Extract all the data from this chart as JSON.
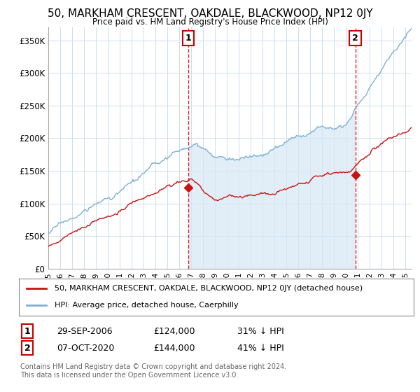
{
  "title": "50, MARKHAM CRESCENT, OAKDALE, BLACKWOOD, NP12 0JY",
  "subtitle": "Price paid vs. HM Land Registry's House Price Index (HPI)",
  "x_start_year": 1995,
  "x_end_year": 2025,
  "ylim": [
    0,
    370000
  ],
  "yticks": [
    0,
    50000,
    100000,
    150000,
    200000,
    250000,
    300000,
    350000
  ],
  "ytick_labels": [
    "£0",
    "£50K",
    "£100K",
    "£150K",
    "£200K",
    "£250K",
    "£300K",
    "£350K"
  ],
  "hpi_color": "#7eb0d5",
  "hpi_fill_color": "#d6e8f5",
  "sale_color": "#cc1111",
  "vline_color": "#cc0000",
  "marker1_date": 2006.75,
  "marker1_price": 124000,
  "marker1_label": "1",
  "marker2_date": 2020.77,
  "marker2_price": 144000,
  "marker2_label": "2",
  "legend_entry1": "50, MARKHAM CRESCENT, OAKDALE, BLACKWOOD, NP12 0JY (detached house)",
  "legend_entry2": "HPI: Average price, detached house, Caerphilly",
  "table_row1": [
    "1",
    "29-SEP-2006",
    "£124,000",
    "31% ↓ HPI"
  ],
  "table_row2": [
    "2",
    "07-OCT-2020",
    "£144,000",
    "41% ↓ HPI"
  ],
  "footnote1": "Contains HM Land Registry data © Crown copyright and database right 2024.",
  "footnote2": "This data is licensed under the Open Government Licence v3.0.",
  "background_color": "#ffffff",
  "grid_color": "#ccddee"
}
